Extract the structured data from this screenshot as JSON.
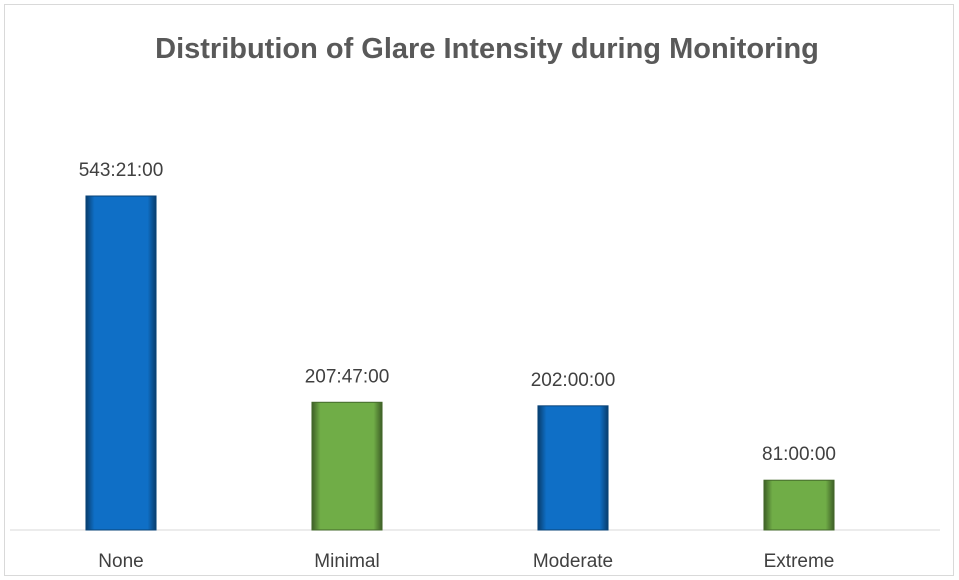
{
  "chart_data": {
    "type": "bar",
    "title": "Distribution of Glare Intensity during Monitoring",
    "categories": [
      "None",
      "Minimal",
      "Moderate",
      "Extreme"
    ],
    "values": [
      543.35,
      207.783333,
      202,
      81
    ],
    "value_labels": [
      "543:21:00",
      "207:47:00",
      "202:00:00",
      "81:00:00"
    ],
    "colors": [
      "#0f6fc6",
      "#70ad47",
      "#0f6fc6",
      "#70ad47"
    ]
  }
}
